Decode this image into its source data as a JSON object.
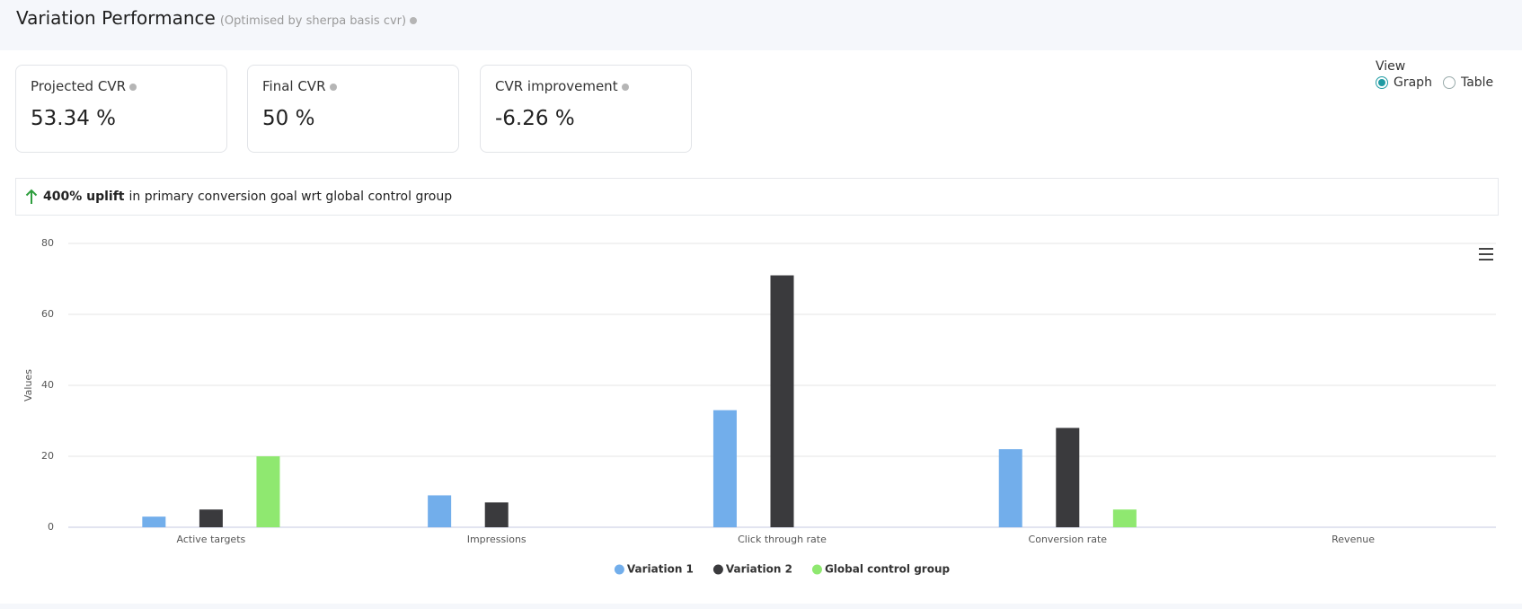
{
  "header": {
    "title": "Variation Performance",
    "subtitle": "(Optimised by sherpa basis cvr)"
  },
  "cards": [
    {
      "label": "Projected CVR",
      "value": "53.34 %"
    },
    {
      "label": "Final CVR",
      "value": "50 %"
    },
    {
      "label": "CVR improvement",
      "value": "-6.26 %"
    }
  ],
  "view": {
    "label": "View",
    "options": [
      "Graph",
      "Table"
    ],
    "selected": 0
  },
  "banner": {
    "highlight": "400% uplift",
    "text": "in primary conversion goal wrt global control group"
  },
  "chart_data": {
    "type": "bar",
    "ylabel": "Values",
    "categories": [
      "Active targets",
      "Impressions",
      "Click through rate",
      "Conversion rate",
      "Revenue"
    ],
    "series": [
      {
        "name": "Variation 1",
        "color": "#72aeeb",
        "values": [
          3,
          9,
          33,
          22,
          0
        ]
      },
      {
        "name": "Variation 2",
        "color": "#3a3a3d",
        "values": [
          5,
          7,
          71,
          28,
          0
        ]
      },
      {
        "name": "Global control group",
        "color": "#8fe870",
        "values": [
          20,
          0,
          0,
          5,
          0
        ]
      }
    ],
    "ylim": [
      0,
      80
    ],
    "yticks": [
      0,
      20,
      40,
      60,
      80
    ],
    "grid": true,
    "legend": "bottom"
  }
}
